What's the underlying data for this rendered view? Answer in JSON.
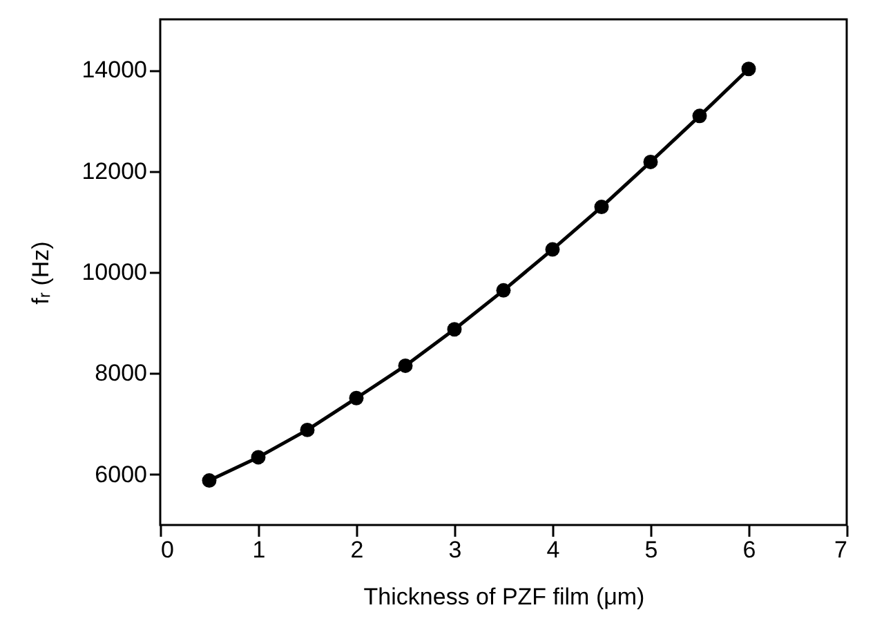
{
  "chart_data": {
    "type": "line",
    "xlabel": "Thickness of PZF film (μm)",
    "ylabel": "fᵣ (Hz)",
    "x": [
      0.5,
      1,
      1.5,
      2,
      2.5,
      3,
      3.5,
      4,
      4.5,
      5,
      5.5,
      6
    ],
    "series": [
      {
        "color": "#000000",
        "values": [
          5880,
          6340,
          6880,
          7510,
          8150,
          8870,
          9640,
          10450,
          11290,
          12180,
          13090,
          14020
        ]
      }
    ],
    "xlim": [
      0,
      7
    ],
    "xticks": [
      0,
      1,
      2,
      3,
      4,
      5,
      6,
      7
    ],
    "ylim": [
      5000,
      15000
    ],
    "yticks": [
      6000,
      8000,
      10000,
      12000,
      14000
    ],
    "marker": "circle",
    "line_style": "solid",
    "grid": false
  }
}
